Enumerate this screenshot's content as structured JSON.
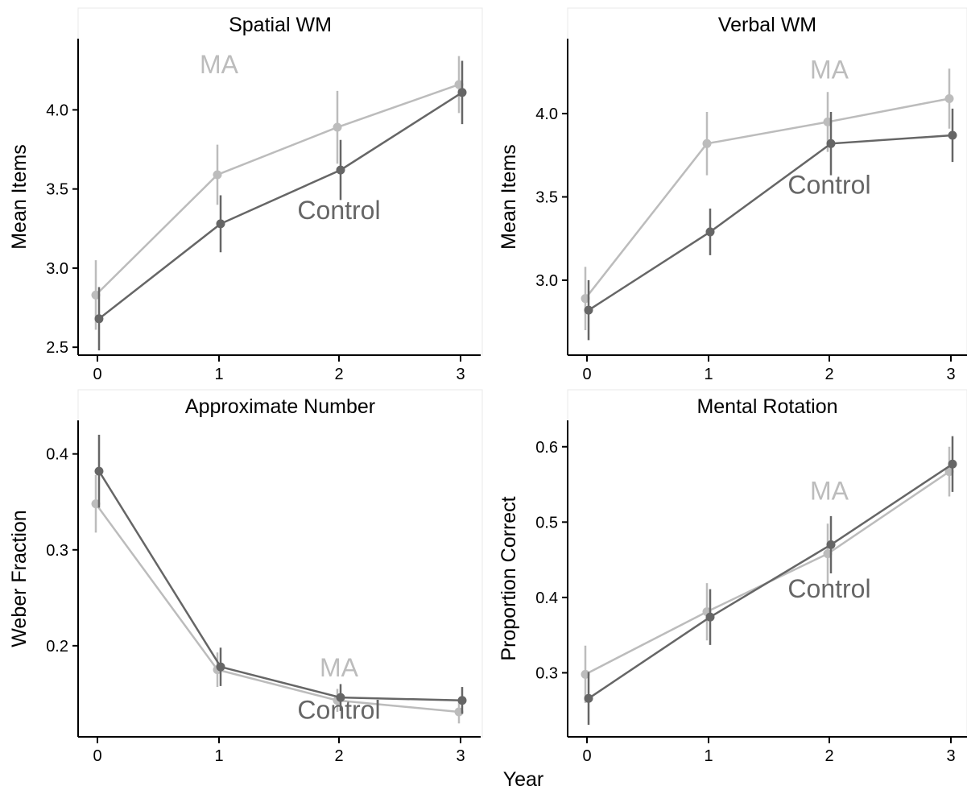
{
  "figure": {
    "x_axis_label": "Year"
  },
  "colors": {
    "MA": "#bcbcbc",
    "Control": "#666666",
    "title_band": "#e6e6e6"
  },
  "chart_data": [
    {
      "type": "line",
      "title": "Spatial WM",
      "xlabel": "",
      "ylabel": "Mean Items",
      "x": [
        0,
        1,
        2,
        3
      ],
      "xlim": [
        -0.16,
        3.17
      ],
      "ylim": [
        2.45,
        4.45
      ],
      "yticks": [
        2.5,
        3.0,
        3.5,
        4.0
      ],
      "series": [
        {
          "name": "MA",
          "values": [
            2.83,
            3.59,
            3.89,
            4.16
          ],
          "error": [
            0.22,
            0.19,
            0.23,
            0.18
          ]
        },
        {
          "name": "Control",
          "values": [
            2.68,
            3.28,
            3.62,
            4.11
          ],
          "error": [
            0.2,
            0.18,
            0.19,
            0.2
          ]
        }
      ]
    },
    {
      "type": "line",
      "title": "Verbal WM",
      "xlabel": "",
      "ylabel": "Mean Items",
      "x": [
        0,
        1,
        2,
        3
      ],
      "xlim": [
        -0.16,
        3.17
      ],
      "ylim": [
        2.55,
        4.45
      ],
      "yticks": [
        3.0,
        3.5,
        4.0
      ],
      "series": [
        {
          "name": "MA",
          "values": [
            2.89,
            3.82,
            3.95,
            4.09
          ],
          "error": [
            0.19,
            0.19,
            0.18,
            0.18
          ]
        },
        {
          "name": "Control",
          "values": [
            2.82,
            3.29,
            3.82,
            3.87
          ],
          "error": [
            0.18,
            0.14,
            0.19,
            0.16
          ]
        }
      ]
    },
    {
      "type": "line",
      "title": "Approximate Number",
      "xlabel": "",
      "ylabel": "Weber Fraction",
      "x": [
        0,
        1,
        2,
        3
      ],
      "xlim": [
        -0.16,
        3.17
      ],
      "ylim": [
        0.105,
        0.435
      ],
      "yticks": [
        0.2,
        0.3,
        0.4
      ],
      "series": [
        {
          "name": "MA",
          "values": [
            0.348,
            0.175,
            0.143,
            0.131
          ],
          "error": [
            0.03,
            0.018,
            0.012,
            0.012
          ]
        },
        {
          "name": "Control",
          "values": [
            0.382,
            0.178,
            0.146,
            0.143
          ],
          "error": [
            0.038,
            0.02,
            0.014,
            0.014
          ]
        }
      ]
    },
    {
      "type": "line",
      "title": "Mental Rotation",
      "xlabel": "",
      "ylabel": "Proportion Correct",
      "x": [
        0,
        1,
        2,
        3
      ],
      "xlim": [
        -0.16,
        3.17
      ],
      "ylim": [
        0.215,
        0.635
      ],
      "yticks": [
        0.3,
        0.4,
        0.5,
        0.6
      ],
      "series": [
        {
          "name": "MA",
          "values": [
            0.298,
            0.381,
            0.458,
            0.567
          ],
          "error": [
            0.038,
            0.038,
            0.04,
            0.033
          ]
        },
        {
          "name": "Control",
          "values": [
            0.266,
            0.374,
            0.47,
            0.577
          ],
          "error": [
            0.035,
            0.037,
            0.038,
            0.037
          ]
        }
      ]
    }
  ]
}
